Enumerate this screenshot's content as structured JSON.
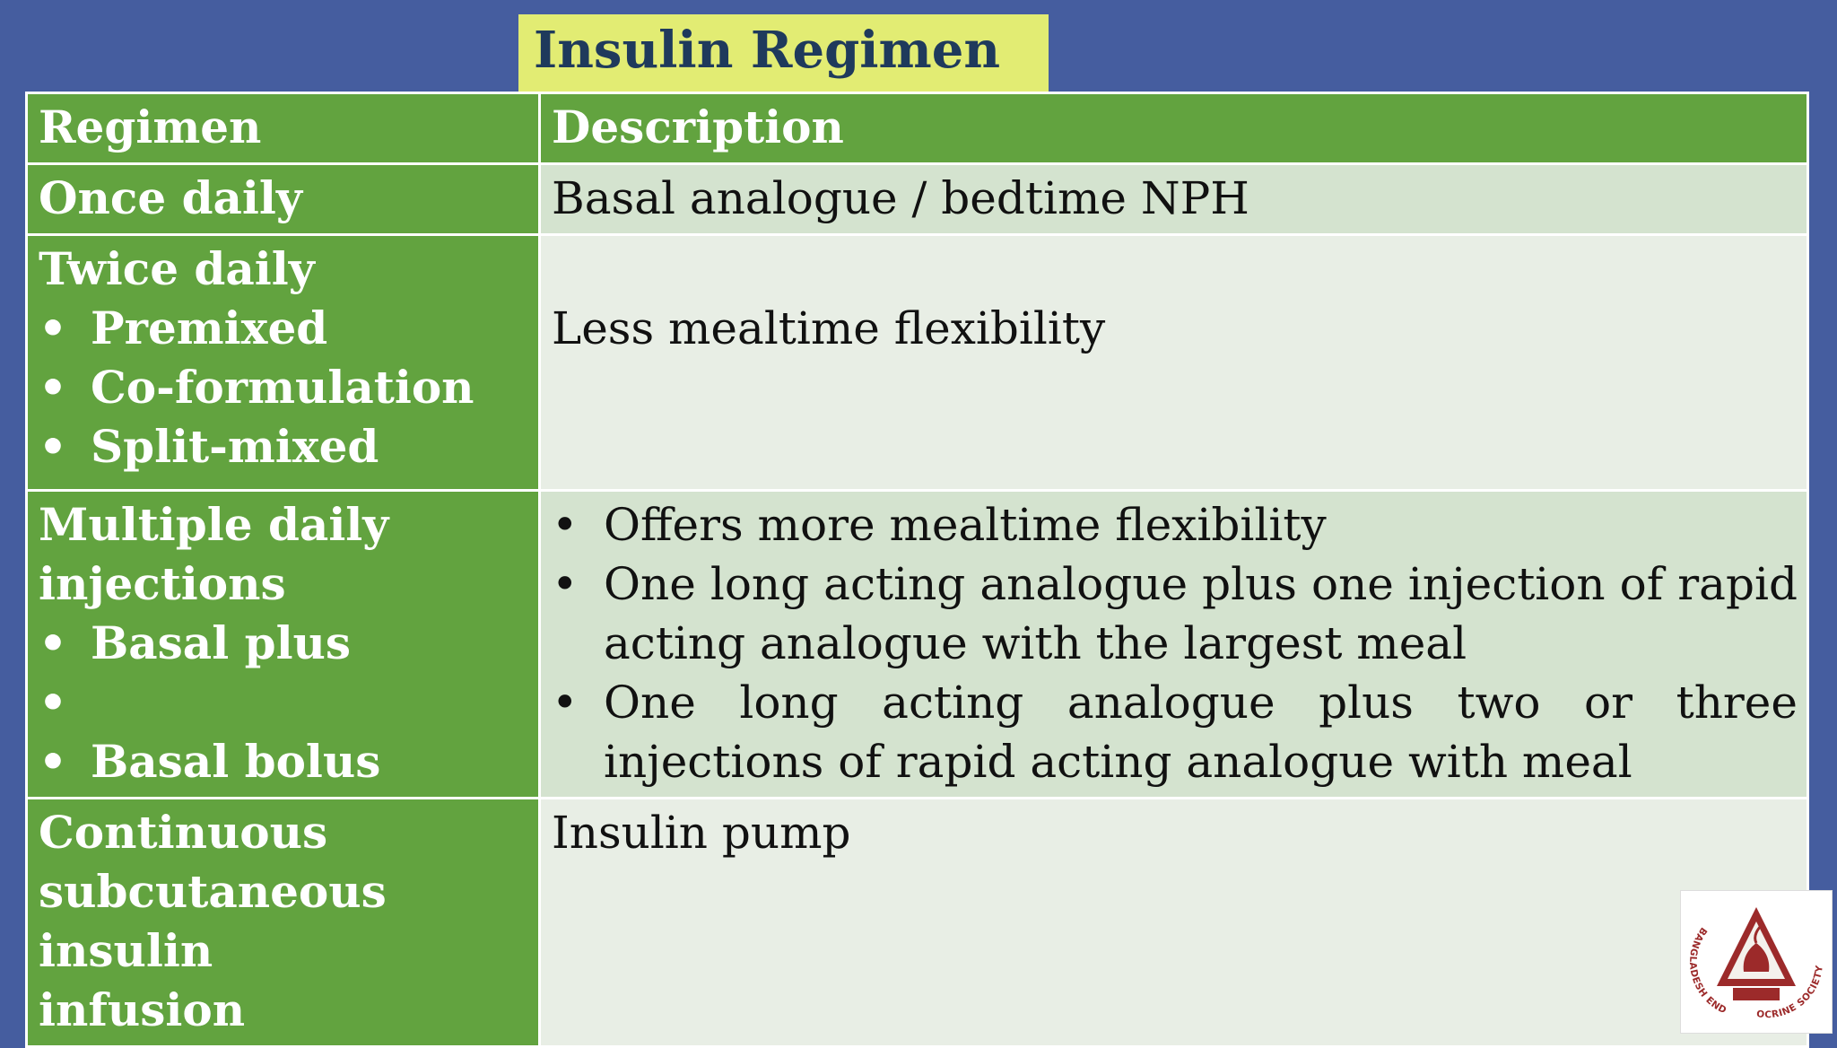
{
  "title": "Insulin Regimen",
  "columns": [
    "Regimen",
    "Description"
  ],
  "rows": [
    {
      "regimen": "Once daily",
      "description": "Basal analogue / bedtime NPH"
    },
    {
      "regimen": "Twice daily",
      "regimen_items": [
        "Premixed",
        "Co-formulation",
        "Split-mixed"
      ],
      "description": "Less mealtime flexibility"
    },
    {
      "regimen_line1": "Multiple daily",
      "regimen_line2": "injections",
      "regimen_items": [
        "Basal plus",
        "Basal bolus"
      ],
      "description_items": [
        "Offers more mealtime flexibility",
        "One long acting analogue plus one injection of rapid acting analogue with the largest meal",
        "One long acting analogue plus two or three injections of rapid acting analogue with meal"
      ]
    },
    {
      "regimen_line1": "Continuous",
      "regimen_line2": "subcutaneous insulin",
      "regimen_line3": "infusion",
      "description": "Insulin pump"
    }
  ],
  "logo": {
    "icon": "bangladesh-endocrine-society-logo",
    "text": "BANGLADESH ENDOCRINE SOCIETY",
    "colors": {
      "primary": "#9c2a2a",
      "fill": "#ffffff"
    }
  },
  "colors": {
    "background": "#455d9f",
    "title_box": "#e2ec73",
    "title_text": "#1f3a5c",
    "header_green": "#62a33f",
    "row_light": "#d4e3cf",
    "row_lighter": "#e8eee5"
  }
}
